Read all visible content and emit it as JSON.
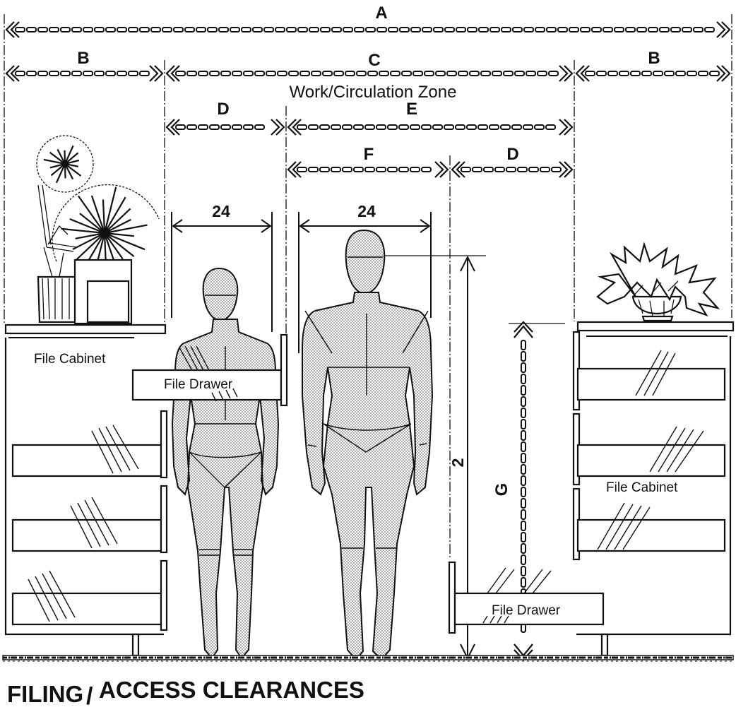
{
  "dimension_labels": {
    "A": "A",
    "B_left": "B",
    "C": "C",
    "B_right": "B",
    "D_left": "D",
    "E": "E",
    "F": "F",
    "D_right": "D",
    "G": "G",
    "vertical_2": "2"
  },
  "zone_label": "Work/Circulation Zone",
  "widths": {
    "left_figure": "24",
    "right_figure": "24"
  },
  "labels": {
    "file_cabinet_left": "File Cabinet",
    "file_cabinet_right": "File Cabinet",
    "file_drawer_left": "File Drawer",
    "file_drawer_right": "File Drawer"
  },
  "title": "FILING / ACCESS CLEARANCES",
  "title_parts": [
    "FILING",
    "ACCESS CLEARANCES"
  ]
}
